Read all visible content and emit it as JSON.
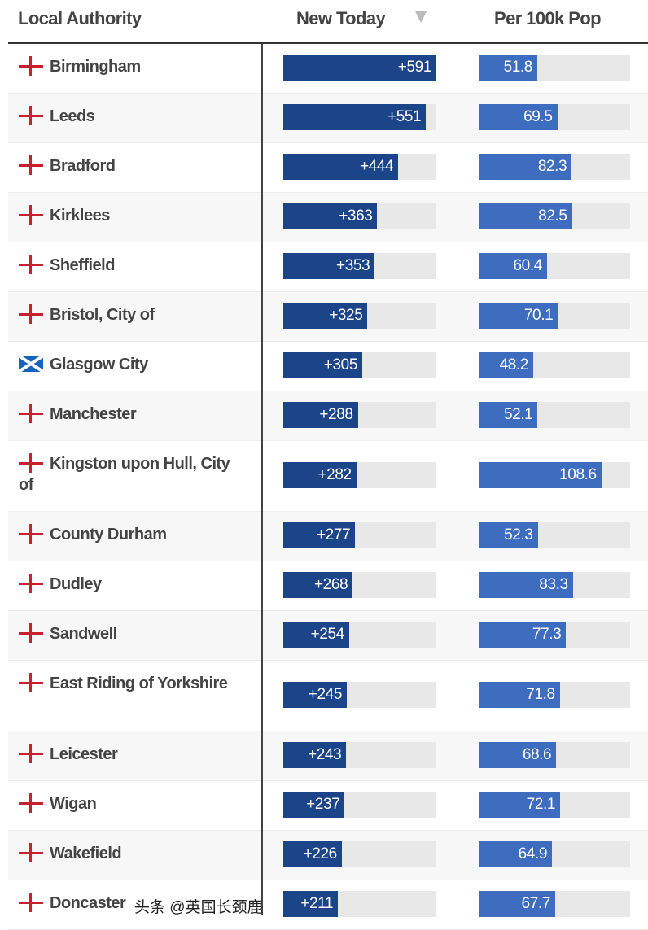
{
  "header": {
    "local_authority": "Local Authority",
    "new_today": "New Today",
    "per_100k": "Per 100k Pop"
  },
  "colors": {
    "new_today_bar": "#1b4489",
    "per100k_bar": "#3e6dbf",
    "track": "#e8e8e8",
    "england_cross": "#c8202f"
  },
  "scale": {
    "new_today_max": 591,
    "per100k_max": 134
  },
  "rows": [
    {
      "name": "Birmingham",
      "flag": "england",
      "new_today": "+591",
      "new_val": 591,
      "per100k": "51.8",
      "per_val": 51.8
    },
    {
      "name": "Leeds",
      "flag": "england",
      "new_today": "+551",
      "new_val": 551,
      "per100k": "69.5",
      "per_val": 69.5
    },
    {
      "name": "Bradford",
      "flag": "england",
      "new_today": "+444",
      "new_val": 444,
      "per100k": "82.3",
      "per_val": 82.3
    },
    {
      "name": "Kirklees",
      "flag": "england",
      "new_today": "+363",
      "new_val": 363,
      "per100k": "82.5",
      "per_val": 82.5
    },
    {
      "name": "Sheffield",
      "flag": "england",
      "new_today": "+353",
      "new_val": 353,
      "per100k": "60.4",
      "per_val": 60.4
    },
    {
      "name": "Bristol, City of",
      "flag": "england",
      "new_today": "+325",
      "new_val": 325,
      "per100k": "70.1",
      "per_val": 70.1
    },
    {
      "name": "Glasgow City",
      "flag": "scotland",
      "new_today": "+305",
      "new_val": 305,
      "per100k": "48.2",
      "per_val": 48.2
    },
    {
      "name": "Manchester",
      "flag": "england",
      "new_today": "+288",
      "new_val": 288,
      "per100k": "52.1",
      "per_val": 52.1
    },
    {
      "name": "Kingston upon Hull, City of",
      "flag": "england",
      "new_today": "+282",
      "new_val": 282,
      "per100k": "108.6",
      "per_val": 108.6,
      "tall": true
    },
    {
      "name": "County Durham",
      "flag": "england",
      "new_today": "+277",
      "new_val": 277,
      "per100k": "52.3",
      "per_val": 52.3
    },
    {
      "name": "Dudley",
      "flag": "england",
      "new_today": "+268",
      "new_val": 268,
      "per100k": "83.3",
      "per_val": 83.3
    },
    {
      "name": "Sandwell",
      "flag": "england",
      "new_today": "+254",
      "new_val": 254,
      "per100k": "77.3",
      "per_val": 77.3
    },
    {
      "name": "East Riding of Yorkshire",
      "flag": "england",
      "new_today": "+245",
      "new_val": 245,
      "per100k": "71.8",
      "per_val": 71.8,
      "tall": true
    },
    {
      "name": "Leicester",
      "flag": "england",
      "new_today": "+243",
      "new_val": 243,
      "per100k": "68.6",
      "per_val": 68.6
    },
    {
      "name": "Wigan",
      "flag": "england",
      "new_today": "+237",
      "new_val": 237,
      "per100k": "72.1",
      "per_val": 72.1
    },
    {
      "name": "Wakefield",
      "flag": "england",
      "new_today": "+226",
      "new_val": 226,
      "per100k": "64.9",
      "per_val": 64.9
    },
    {
      "name": "Doncaster",
      "flag": "england",
      "new_today": "+211",
      "new_val": 211,
      "per100k": "67.7",
      "per_val": 67.7
    }
  ],
  "watermark": "头条 @英国长颈鹿"
}
